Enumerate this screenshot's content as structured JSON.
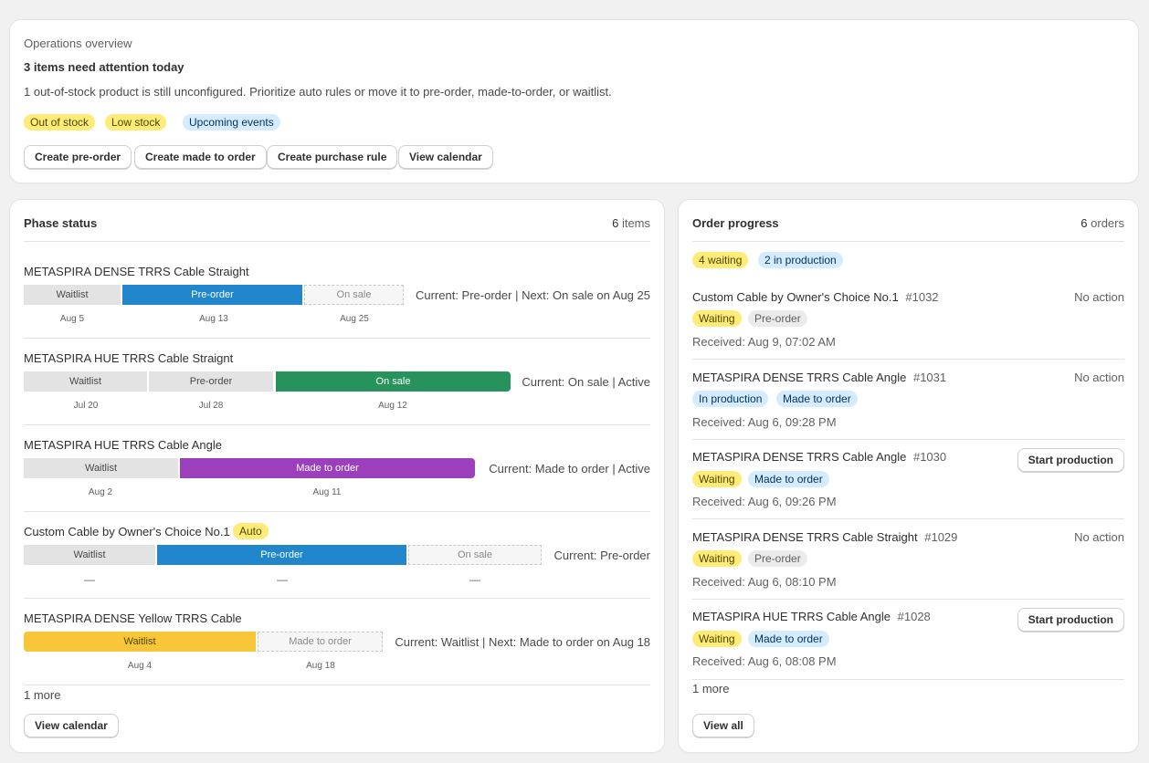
{
  "overview": {
    "label": "Operations overview",
    "headline": "3 items need attention today",
    "description": "1 out-of-stock product is still unconfigured. Prioritize auto rules or move it to pre-order, made-to-order, or waitlist.",
    "tags": [
      "Out of stock",
      "Low stock",
      "Upcoming events"
    ],
    "actions": [
      "Create pre-order",
      "Create made to order",
      "Create purchase rule",
      "View calendar"
    ]
  },
  "phase_status": {
    "title": "Phase status",
    "count": "6",
    "count_unit": "items",
    "products": [
      {
        "name": "METASPIRA DENSE TRRS Cable Straight",
        "badge": "",
        "phases": [
          "Waitlist",
          "Pre-order",
          "On sale"
        ],
        "dates": [
          "Aug 5",
          "Aug 13",
          "Aug 25"
        ],
        "status": "Current: Pre-order | Next: On sale on Aug 25"
      },
      {
        "name": "METASPIRA HUE TRRS Cable Straignt",
        "badge": "",
        "phases": [
          "Waitlist",
          "Pre-order",
          "On sale"
        ],
        "dates": [
          "Jul 20",
          "Jul 28",
          "Aug 12"
        ],
        "status": "Current: On sale | Active"
      },
      {
        "name": "METASPIRA HUE TRRS Cable Angle",
        "badge": "",
        "phases": [
          "Waitlist",
          "Made to order"
        ],
        "dates": [
          "Aug 2",
          "Aug 11"
        ],
        "status": "Current: Made to order | Active"
      },
      {
        "name": "Custom Cable by Owner's Choice No.1",
        "badge": "Auto",
        "phases": [
          "Waitlist",
          "Pre-order",
          "On sale"
        ],
        "dates": [
          "—",
          "—",
          "—"
        ],
        "status": "Current: Pre-order"
      },
      {
        "name": "METASPIRA DENSE Yellow TRRS Cable",
        "badge": "",
        "phases": [
          "Waitlist",
          "Made to order"
        ],
        "dates": [
          "Aug 4",
          "Aug 18"
        ],
        "status": "Current: Waitlist | Next: Made to order on Aug 18"
      }
    ],
    "more": "1 more",
    "button": "View calendar"
  },
  "order_progress": {
    "title": "Order progress",
    "count": "6",
    "count_unit": "orders",
    "summary": [
      "4 waiting",
      "2 in production"
    ],
    "orders": [
      {
        "name": "Custom Cable by Owner's Choice No.1",
        "number": "#1032",
        "status": "Waiting",
        "type": "Pre-order",
        "received": "Received: Aug 9, 07:02 AM",
        "action": "No action"
      },
      {
        "name": "METASPIRA DENSE TRRS Cable Angle",
        "number": "#1031",
        "status": "In production",
        "type": "Made to order",
        "received": "Received: Aug 6, 09:28 PM",
        "action": "No action"
      },
      {
        "name": "METASPIRA DENSE TRRS Cable Angle",
        "number": "#1030",
        "status": "Waiting",
        "type": "Made to order",
        "received": "Received: Aug 6, 09:26 PM",
        "action": "Start production"
      },
      {
        "name": "METASPIRA DENSE TRRS Cable Straight",
        "number": "#1029",
        "status": "Waiting",
        "type": "Pre-order",
        "received": "Received: Aug 6, 08:10 PM",
        "action": "No action"
      },
      {
        "name": "METASPIRA HUE TRRS Cable Angle",
        "number": "#1028",
        "status": "Waiting",
        "type": "Made to order",
        "received": "Received: Aug 6, 08:08 PM",
        "action": "Start production"
      }
    ],
    "more": "1 more",
    "button": "View all"
  },
  "colors": {
    "pre_order": "#2286cc",
    "on_sale": "#27925c",
    "made_to_order": "#9c3fbd",
    "waitlist": "#f9c63a"
  }
}
